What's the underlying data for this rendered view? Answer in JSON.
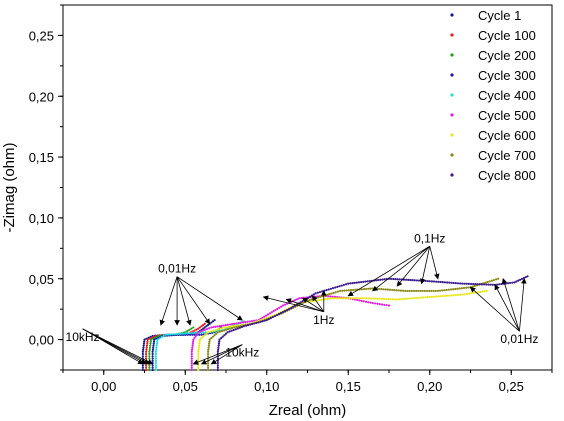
{
  "chart_data": {
    "type": "scatter",
    "xlabel": "Zreal (ohm)",
    "ylabel": "-Zimag (ohm)",
    "xlim": [
      -0.025,
      0.275
    ],
    "ylim": [
      -0.025,
      0.275
    ],
    "x_ticks": [
      0.0,
      0.05,
      0.1,
      0.15,
      0.2,
      0.25
    ],
    "x_tick_labels": [
      "0,00",
      "0,05",
      "0,10",
      "0,15",
      "0,20",
      "0,25"
    ],
    "y_ticks": [
      0.0,
      0.05,
      0.1,
      0.15,
      0.2,
      0.25
    ],
    "y_tick_labels": [
      "0,00",
      "0,05",
      "0,10",
      "0,15",
      "0,20",
      "0,25"
    ],
    "legend_position": "top-right",
    "series": [
      {
        "name": "Cycle 1",
        "color": "#1a1a8c",
        "points": [
          [
            0.024,
            -0.025
          ],
          [
            0.024,
            -0.01
          ],
          [
            0.025,
            0.0
          ],
          [
            0.03,
            0.003
          ],
          [
            0.04,
            0.004
          ],
          [
            0.05,
            0.004
          ],
          [
            0.058,
            0.006
          ],
          [
            0.064,
            0.012
          ],
          [
            0.068,
            0.016
          ]
        ]
      },
      {
        "name": "Cycle 100",
        "color": "#e0221f",
        "points": [
          [
            0.026,
            -0.025
          ],
          [
            0.026,
            -0.01
          ],
          [
            0.027,
            0.0
          ],
          [
            0.032,
            0.003
          ],
          [
            0.042,
            0.004
          ],
          [
            0.052,
            0.005
          ],
          [
            0.058,
            0.009
          ],
          [
            0.062,
            0.013
          ]
        ]
      },
      {
        "name": "Cycle 200",
        "color": "#20a020",
        "points": [
          [
            0.028,
            -0.025
          ],
          [
            0.028,
            -0.01
          ],
          [
            0.029,
            0.0
          ],
          [
            0.034,
            0.003
          ],
          [
            0.044,
            0.004
          ],
          [
            0.05,
            0.006
          ],
          [
            0.055,
            0.01
          ]
        ]
      },
      {
        "name": "Cycle 300",
        "color": "#1a1aa8",
        "points": [
          [
            0.03,
            -0.025
          ],
          [
            0.03,
            -0.01
          ],
          [
            0.031,
            0.0
          ],
          [
            0.036,
            0.003
          ],
          [
            0.046,
            0.004
          ],
          [
            0.06,
            0.004
          ],
          [
            0.068,
            0.006
          ],
          [
            0.072,
            0.01
          ]
        ]
      },
      {
        "name": "Cycle 400",
        "color": "#22dddd",
        "points": [
          [
            0.032,
            -0.025
          ],
          [
            0.032,
            -0.01
          ],
          [
            0.033,
            0.0
          ],
          [
            0.038,
            0.004
          ],
          [
            0.05,
            0.005
          ],
          [
            0.064,
            0.006
          ],
          [
            0.074,
            0.008
          ],
          [
            0.08,
            0.012
          ],
          [
            0.086,
            0.015
          ]
        ]
      },
      {
        "name": "Cycle 500",
        "color": "#dd22dd",
        "points": [
          [
            0.054,
            -0.025
          ],
          [
            0.054,
            -0.01
          ],
          [
            0.055,
            0.0
          ],
          [
            0.058,
            0.006
          ],
          [
            0.066,
            0.01
          ],
          [
            0.08,
            0.013
          ],
          [
            0.095,
            0.016
          ],
          [
            0.11,
            0.028
          ],
          [
            0.12,
            0.034
          ],
          [
            0.135,
            0.036
          ],
          [
            0.15,
            0.034
          ],
          [
            0.165,
            0.03
          ],
          [
            0.175,
            0.028
          ]
        ]
      },
      {
        "name": "Cycle 600",
        "color": "#e8e820",
        "points": [
          [
            0.058,
            -0.025
          ],
          [
            0.058,
            -0.01
          ],
          [
            0.059,
            0.0
          ],
          [
            0.064,
            0.006
          ],
          [
            0.074,
            0.01
          ],
          [
            0.09,
            0.013
          ],
          [
            0.105,
            0.02
          ],
          [
            0.12,
            0.03
          ],
          [
            0.14,
            0.034
          ],
          [
            0.16,
            0.034
          ],
          [
            0.18,
            0.033
          ],
          [
            0.2,
            0.035
          ],
          [
            0.22,
            0.037
          ],
          [
            0.235,
            0.04
          ]
        ]
      },
      {
        "name": "Cycle 700",
        "color": "#8a8a18",
        "points": [
          [
            0.064,
            -0.025
          ],
          [
            0.064,
            -0.01
          ],
          [
            0.065,
            0.0
          ],
          [
            0.07,
            0.006
          ],
          [
            0.08,
            0.01
          ],
          [
            0.095,
            0.014
          ],
          [
            0.11,
            0.022
          ],
          [
            0.125,
            0.032
          ],
          [
            0.145,
            0.04
          ],
          [
            0.165,
            0.042
          ],
          [
            0.185,
            0.04
          ],
          [
            0.205,
            0.04
          ],
          [
            0.225,
            0.043
          ],
          [
            0.242,
            0.05
          ]
        ]
      },
      {
        "name": "Cycle 800",
        "color": "#3a1a8c",
        "points": [
          [
            0.07,
            -0.025
          ],
          [
            0.07,
            -0.01
          ],
          [
            0.071,
            0.0
          ],
          [
            0.076,
            0.006
          ],
          [
            0.086,
            0.011
          ],
          [
            0.1,
            0.016
          ],
          [
            0.115,
            0.026
          ],
          [
            0.13,
            0.038
          ],
          [
            0.15,
            0.046
          ],
          [
            0.175,
            0.05
          ],
          [
            0.2,
            0.048
          ],
          [
            0.22,
            0.046
          ],
          [
            0.24,
            0.045
          ],
          [
            0.252,
            0.047
          ],
          [
            0.26,
            0.052
          ]
        ]
      }
    ],
    "annotations": [
      {
        "text": "0,01Hz",
        "x": 0.045,
        "y": 0.055,
        "targets": [
          [
            0.035,
            0.012
          ],
          [
            0.045,
            0.012
          ],
          [
            0.053,
            0.012
          ],
          [
            0.065,
            0.013
          ],
          [
            0.085,
            0.016
          ]
        ]
      },
      {
        "text": "10kHz",
        "x": -0.013,
        "y": -0.001,
        "targets": [
          [
            0.024,
            -0.02
          ],
          [
            0.026,
            -0.02
          ],
          [
            0.028,
            -0.02
          ],
          [
            0.03,
            -0.02
          ]
        ]
      },
      {
        "text": "10kHz",
        "x": 0.085,
        "y": -0.014,
        "targets": [
          [
            0.055,
            -0.02
          ],
          [
            0.06,
            -0.02
          ],
          [
            0.066,
            -0.02
          ]
        ]
      },
      {
        "text": "1Hz",
        "x": 0.135,
        "y": 0.013,
        "targets": [
          [
            0.098,
            0.035
          ],
          [
            0.112,
            0.033
          ],
          [
            0.122,
            0.034
          ],
          [
            0.128,
            0.036
          ],
          [
            0.135,
            0.04
          ]
        ]
      },
      {
        "text": "0,1Hz",
        "x": 0.2,
        "y": 0.08,
        "targets": [
          [
            0.15,
            0.036
          ],
          [
            0.165,
            0.04
          ],
          [
            0.18,
            0.044
          ],
          [
            0.195,
            0.046
          ],
          [
            0.205,
            0.05
          ]
        ]
      },
      {
        "text": "0,01Hz",
        "x": 0.255,
        "y": -0.003,
        "targets": [
          [
            0.245,
            0.05
          ],
          [
            0.258,
            0.05
          ],
          [
            0.24,
            0.045
          ],
          [
            0.225,
            0.043
          ]
        ]
      }
    ]
  }
}
